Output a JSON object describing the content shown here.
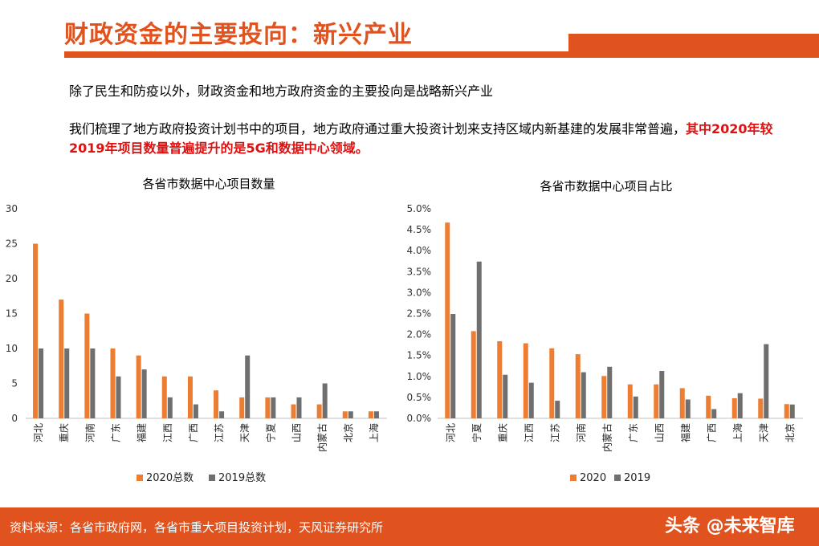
{
  "header": {
    "title": "财政资金的主要投向：新兴产业"
  },
  "body": {
    "para1": "除了民生和防疫以外，财政资金和地方政府资金的主要投向是战略新兴产业",
    "para2_normal": "我们梳理了地方政府投资计划书中的项目，地方政府通过重大投资计划来支持区域内新基建的发展非常普遍，",
    "para2_highlight": "其中2020年较2019年项目数量普遍提升的是5G和数据中心领域。"
  },
  "footer": {
    "source": "资料来源：各省市政府网，各省市重大项目投资计划，天风证券研究所",
    "watermark": "头条 @未来智库"
  },
  "colors": {
    "accent": "#E0531F",
    "series_2020": "#ED7D31",
    "series_2019": "#6F6F6F",
    "highlight": "#E01010"
  },
  "chart_data": [
    {
      "type": "bar",
      "title": "各省市数据中心项目数量",
      "categories": [
        "河北",
        "重庆",
        "河南",
        "广东",
        "福建",
        "江西",
        "广西",
        "江苏",
        "天津",
        "宁夏",
        "山西",
        "内蒙古",
        "北京",
        "上海"
      ],
      "series": [
        {
          "name": "2020总数",
          "values": [
            25,
            17,
            15,
            10,
            9,
            6,
            6,
            4,
            3,
            3,
            2,
            2,
            1,
            1
          ]
        },
        {
          "name": "2019总数",
          "values": [
            10,
            10,
            10,
            6,
            7,
            3,
            2,
            1,
            9,
            3,
            3,
            5,
            1,
            1
          ]
        }
      ],
      "yticks": [
        "0",
        "5",
        "10",
        "15",
        "20",
        "25",
        "30"
      ],
      "ylim": [
        0,
        30
      ],
      "legend": "bottom"
    },
    {
      "type": "bar",
      "title": "各省市数据中心项目占比",
      "categories": [
        "河北",
        "宁夏",
        "重庆",
        "江西",
        "江苏",
        "河南",
        "内蒙古",
        "广东",
        "山西",
        "福建",
        "广西",
        "上海",
        "天津",
        "北京"
      ],
      "series": [
        {
          "name": "2020",
          "values": [
            4.67,
            2.08,
            1.84,
            1.79,
            1.67,
            1.53,
            1.01,
            0.81,
            0.81,
            0.72,
            0.54,
            0.48,
            0.47,
            0.34
          ]
        },
        {
          "name": "2019",
          "values": [
            2.49,
            3.74,
            1.04,
            0.85,
            0.42,
            1.1,
            1.23,
            0.52,
            1.13,
            0.45,
            0.22,
            0.6,
            1.77,
            0.33
          ]
        }
      ],
      "yticks": [
        "0.0%",
        "0.5%",
        "1.0%",
        "1.5%",
        "2.0%",
        "2.5%",
        "3.0%",
        "3.5%",
        "4.0%",
        "4.5%",
        "5.0%"
      ],
      "ylim": [
        0,
        5
      ],
      "legend": "bottom"
    }
  ]
}
